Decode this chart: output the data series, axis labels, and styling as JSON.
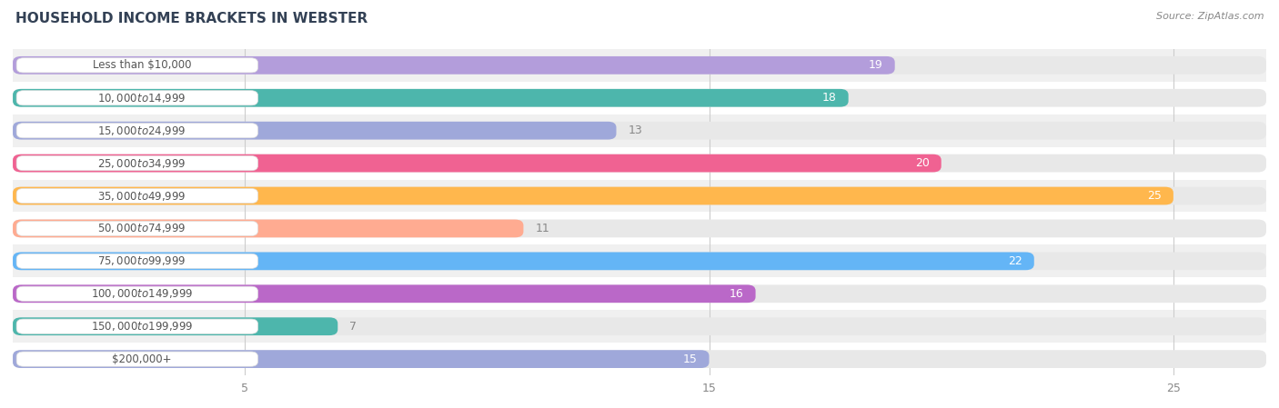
{
  "title": "HOUSEHOLD INCOME BRACKETS IN WEBSTER",
  "source": "Source: ZipAtlas.com",
  "categories": [
    "Less than $10,000",
    "$10,000 to $14,999",
    "$15,000 to $24,999",
    "$25,000 to $34,999",
    "$35,000 to $49,999",
    "$50,000 to $74,999",
    "$75,000 to $99,999",
    "$100,000 to $149,999",
    "$150,000 to $199,999",
    "$200,000+"
  ],
  "values": [
    19,
    18,
    13,
    20,
    25,
    11,
    22,
    16,
    7,
    15
  ],
  "bar_colors": [
    "#b39ddb",
    "#4db6ac",
    "#9fa8da",
    "#f06292",
    "#ffb74d",
    "#ffab91",
    "#64b5f6",
    "#ba68c8",
    "#4db6ac",
    "#9fa8da"
  ],
  "xlim_max": 27,
  "xticks": [
    5,
    15,
    25
  ],
  "background_color": "#ffffff",
  "row_bg_color": "#f0f0f0",
  "bar_bg_color": "#e8e8e8",
  "label_box_color": "#ffffff",
  "label_text_color": "#555555",
  "value_inside_color": "#ffffff",
  "value_outside_color": "#888888",
  "title_fontsize": 11,
  "source_fontsize": 8,
  "value_fontsize": 9,
  "cat_fontsize": 8.5,
  "tick_fontsize": 9,
  "bar_height": 0.55,
  "inside_threshold": 14
}
